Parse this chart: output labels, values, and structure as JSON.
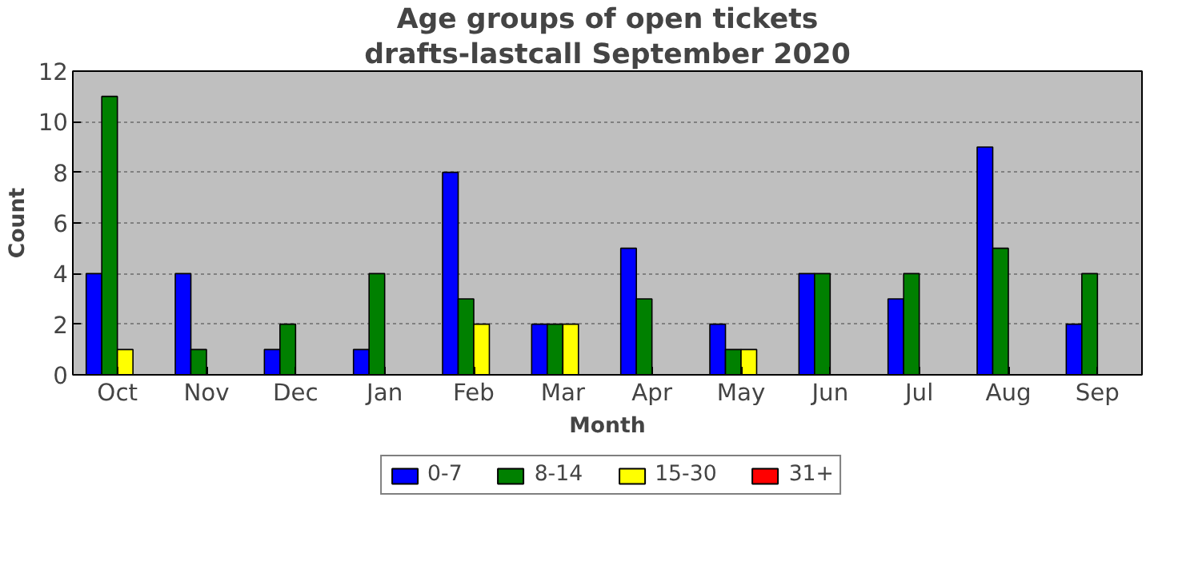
{
  "chart_data": {
    "type": "bar",
    "title": "Age groups of open tickets",
    "subtitle": "drafts-lastcall September 2020",
    "xlabel": "Month",
    "ylabel": "Count",
    "categories": [
      "Oct",
      "Nov",
      "Dec",
      "Jan",
      "Feb",
      "Mar",
      "Apr",
      "May",
      "Jun",
      "Jul",
      "Aug",
      "Sep"
    ],
    "series": [
      {
        "name": "0-7",
        "color": "#0000ff",
        "values": [
          4,
          4,
          1,
          1,
          8,
          2,
          5,
          2,
          4,
          3,
          9,
          2
        ]
      },
      {
        "name": "8-14",
        "color": "#008000",
        "values": [
          11,
          1,
          2,
          4,
          3,
          2,
          3,
          1,
          4,
          4,
          5,
          4
        ]
      },
      {
        "name": "15-30",
        "color": "#ffff00",
        "values": [
          1,
          0,
          0,
          0,
          2,
          2,
          0,
          1,
          0,
          0,
          0,
          0
        ]
      },
      {
        "name": "31+",
        "color": "#ff0000",
        "values": [
          0,
          0,
          0,
          0,
          0,
          0,
          0,
          0,
          0,
          0,
          0,
          0
        ]
      }
    ],
    "ylim": [
      0,
      12
    ],
    "yticks": [
      0,
      2,
      4,
      6,
      8,
      10,
      12
    ],
    "grid": "y",
    "legend": "bottom"
  }
}
